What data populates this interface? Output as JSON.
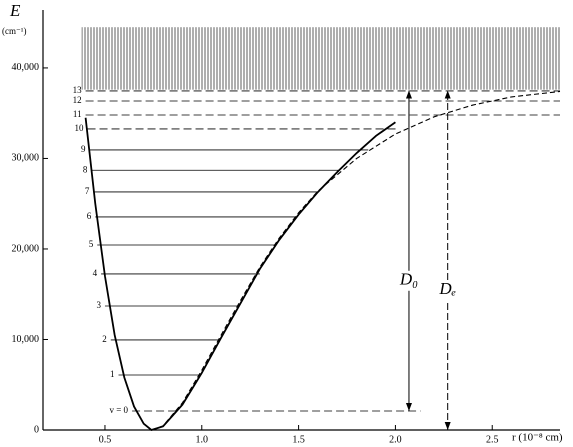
{
  "chart_data": {
    "type": "potential",
    "y_label": "E",
    "y_unit": "(cm⁻¹)",
    "x_label": "r (10⁻⁸ cm)",
    "xlim": [
      0.18,
      2.85
    ],
    "ylim": [
      0,
      46400
    ],
    "xticks": [
      0.5,
      {
        "value": 1.0,
        "label": "1.0"
      },
      1.5,
      {
        "value": 2.0,
        "label": "2.0"
      },
      2.5
    ],
    "yticks": [
      0,
      {
        "value": 10000,
        "label": "10,000"
      },
      {
        "value": 20000,
        "label": "20,000"
      },
      {
        "value": 30000,
        "label": "30,000"
      },
      {
        "value": 40000,
        "label": "40,000"
      }
    ],
    "series": [
      {
        "style": "solid",
        "color": "#000000",
        "x": [
          0.4,
          0.45,
          0.5,
          0.55,
          0.6,
          0.65,
          0.7,
          0.74,
          0.8,
          0.9,
          1.0,
          1.1,
          1.2,
          1.3,
          1.4,
          1.5,
          1.6,
          1.7,
          1.8,
          1.9,
          2.0
        ],
        "values": [
          34500,
          25000,
          17000,
          10500,
          5800,
          2600,
          700,
          0,
          400,
          2800,
          6300,
          10200,
          14000,
          17800,
          21000,
          23800,
          26300,
          28500,
          30600,
          32500,
          34000
        ]
      },
      {
        "style": "dashed",
        "color": "#000000",
        "x": [
          0.74,
          0.8,
          0.9,
          1.0,
          1.1,
          1.2,
          1.3,
          1.4,
          1.5,
          1.6,
          1.7,
          1.8,
          2.0,
          2.2,
          2.4,
          2.6,
          2.85
        ],
        "values": [
          0,
          450,
          3000,
          6600,
          10500,
          14300,
          18000,
          21200,
          24000,
          26400,
          28200,
          30000,
          32700,
          34600,
          35900,
          36800,
          37400
        ]
      }
    ],
    "levels": [
      {
        "label": "v = 0",
        "energy": 2100,
        "r": [
          0.64,
          2.13
        ],
        "dashed": true
      },
      {
        "label": "1",
        "energy": 6080,
        "r": [
          0.57,
          0.99
        ],
        "dashed": false
      },
      {
        "label": "2",
        "energy": 9950,
        "r": [
          0.53,
          1.09
        ],
        "dashed": false
      },
      {
        "label": "3",
        "energy": 13700,
        "r": [
          0.5,
          1.19
        ],
        "dashed": false
      },
      {
        "label": "4",
        "energy": 17240,
        "r": [
          0.48,
          1.3
        ],
        "dashed": false
      },
      {
        "label": "5",
        "energy": 20440,
        "r": [
          0.46,
          1.38
        ],
        "dashed": false
      },
      {
        "label": "6",
        "energy": 23540,
        "r": [
          0.45,
          1.49
        ],
        "dashed": false
      },
      {
        "label": "7",
        "energy": 26300,
        "r": [
          0.44,
          1.6
        ],
        "dashed": false
      },
      {
        "label": "8",
        "energy": 28700,
        "r": [
          0.43,
          1.71
        ],
        "dashed": false
      },
      {
        "label": "9",
        "energy": 30940,
        "r": [
          0.42,
          1.86
        ],
        "dashed": false
      },
      {
        "label": "10",
        "energy": 33260,
        "r": [
          0.41,
          2.02
        ],
        "dashed": true
      },
      {
        "label": "11",
        "energy": 34800,
        "r": [
          0.4,
          2.85
        ],
        "dashed": true
      },
      {
        "label": "12",
        "energy": 36350,
        "r": [
          0.4,
          2.85
        ],
        "dashed": true
      },
      {
        "label": "13",
        "energy": 37460,
        "r": [
          0.4,
          2.85
        ],
        "dashed": true
      }
    ],
    "continuum": {
      "r": [
        0.38,
        2.85
      ],
      "energy": [
        37600,
        44500
      ]
    },
    "arrows": [
      {
        "label": "D₀",
        "r": 2.07,
        "energy": [
          2100,
          37500
        ]
      },
      {
        "label": "Dₑ",
        "r": 2.27,
        "energy": [
          0,
          37500
        ]
      }
    ]
  }
}
